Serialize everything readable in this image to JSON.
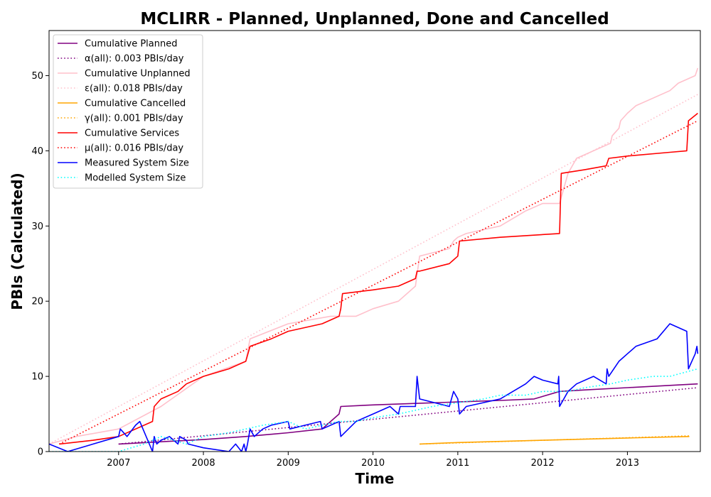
{
  "chart_data": {
    "type": "line",
    "title": "MCLIRR - Planned, Unplanned, Done  and Cancelled",
    "xlabel": "Time",
    "ylabel": "PBIs (Calculated)",
    "xlim": [
      2006.18,
      2013.86
    ],
    "ylim": [
      0,
      56
    ],
    "x_ticks": [
      2007,
      2008,
      2009,
      2010,
      2011,
      2012,
      2013
    ],
    "x_tick_labels": [
      "2007",
      "2008",
      "2009",
      "2010",
      "2011",
      "2012",
      "2013"
    ],
    "y_ticks": [
      0,
      10,
      20,
      30,
      40,
      50
    ],
    "y_tick_labels": [
      "0",
      "10",
      "20",
      "30",
      "40",
      "50"
    ],
    "legend_position": "upper-left",
    "grid": false,
    "series": [
      {
        "name": "Cumulative Planned",
        "color": "#800080",
        "style": "solid",
        "x": [
          2007.0,
          2007.5,
          2008.0,
          2008.5,
          2009.0,
          2009.4,
          2009.6,
          2009.62,
          2010.0,
          2010.5,
          2011.0,
          2011.5,
          2011.9,
          2012.2,
          2012.5,
          2013.0,
          2013.5,
          2013.83
        ],
        "y": [
          1,
          1.3,
          1.6,
          2.0,
          2.5,
          3.0,
          5,
          6,
          6.2,
          6.4,
          6.6,
          6.8,
          7.0,
          8.0,
          8.2,
          8.5,
          8.8,
          9.0
        ]
      },
      {
        "name": "α(all): 0.003 PBIs/day",
        "color": "#800080",
        "style": "dotted",
        "x": [
          2007.0,
          2013.83
        ],
        "y": [
          1.0,
          8.5
        ]
      },
      {
        "name": "Cumulative Unplanned",
        "color": "#ffc0cb",
        "style": "solid",
        "x": [
          2006.18,
          2006.5,
          2007.0,
          2007.5,
          2008.0,
          2008.5,
          2008.55,
          2009.0,
          2009.5,
          2009.8,
          2010.0,
          2010.3,
          2010.5,
          2010.55,
          2010.9,
          2010.95,
          2011.0,
          2011.1,
          2011.5,
          2011.8,
          2012.0,
          2012.2,
          2012.3,
          2012.4,
          2012.6,
          2012.8,
          2012.82,
          2012.9,
          2012.92,
          2013.0,
          2013.1,
          2013.3,
          2013.5,
          2013.6,
          2013.8,
          2013.83
        ],
        "y": [
          1,
          2,
          3,
          6,
          10,
          12,
          15,
          17,
          18,
          18,
          19,
          20,
          22,
          26,
          27,
          28,
          28.5,
          29,
          30,
          32,
          33,
          33,
          37,
          39,
          40,
          41,
          42,
          43,
          44,
          45,
          46,
          47,
          48,
          49,
          50,
          51
        ]
      },
      {
        "name": "ε(all): 0.018 PBIs/day",
        "color": "#ffc0cb",
        "style": "dotted",
        "x": [
          2006.18,
          2013.83
        ],
        "y": [
          1.0,
          47.5
        ]
      },
      {
        "name": "Cumulative Cancelled",
        "color": "#ffa500",
        "style": "solid",
        "x": [
          2010.55,
          2011.0,
          2012.0,
          2013.0,
          2013.73
        ],
        "y": [
          1,
          1.2,
          1.5,
          1.8,
          2
        ]
      },
      {
        "name": "γ(all): 0.001 PBIs/day",
        "color": "#ffa500",
        "style": "dotted",
        "x": [
          2010.55,
          2013.73
        ],
        "y": [
          1.0,
          2.1
        ]
      },
      {
        "name": "Cumulative Services",
        "color": "#ff0000",
        "style": "solid",
        "x": [
          2006.3,
          2006.7,
          2007.0,
          2007.4,
          2007.42,
          2007.5,
          2007.7,
          2007.8,
          2008.0,
          2008.3,
          2008.4,
          2008.5,
          2008.55,
          2008.8,
          2009.0,
          2009.4,
          2009.6,
          2009.62,
          2009.64,
          2010.0,
          2010.3,
          2010.5,
          2010.52,
          2010.55,
          2010.9,
          2011.0,
          2011.02,
          2011.5,
          2012.2,
          2012.22,
          2012.5,
          2012.75,
          2012.78,
          2013.0,
          2013.5,
          2013.7,
          2013.72,
          2013.83
        ],
        "y": [
          1,
          1.5,
          2,
          4,
          6,
          7,
          8,
          9,
          10,
          11,
          11.5,
          12,
          14,
          15,
          16,
          17,
          18,
          19,
          21,
          21.5,
          22,
          23,
          24,
          24,
          25,
          26,
          28,
          28.5,
          29,
          37,
          37.5,
          38,
          39,
          39.3,
          39.8,
          40,
          44,
          45
        ]
      },
      {
        "name": "μ(all): 0.016 PBIs/day",
        "color": "#ff0000",
        "style": "dotted",
        "x": [
          2006.3,
          2013.83
        ],
        "y": [
          1.0,
          44.0
        ]
      },
      {
        "name": "Measured System Size",
        "color": "#0000ff",
        "style": "solid",
        "x": [
          2006.18,
          2006.4,
          2006.7,
          2007.0,
          2007.02,
          2007.1,
          2007.2,
          2007.25,
          2007.4,
          2007.42,
          2007.45,
          2007.5,
          2007.6,
          2007.7,
          2007.72,
          2007.8,
          2007.82,
          2008.0,
          2008.3,
          2008.38,
          2008.45,
          2008.48,
          2008.5,
          2008.52,
          2008.55,
          2008.6,
          2008.7,
          2008.8,
          2009.0,
          2009.02,
          2009.2,
          2009.38,
          2009.4,
          2009.6,
          2009.62,
          2009.8,
          2010.0,
          2010.2,
          2010.3,
          2010.32,
          2010.5,
          2010.52,
          2010.55,
          2010.9,
          2010.95,
          2011.0,
          2011.02,
          2011.1,
          2011.5,
          2011.8,
          2011.9,
          2012.0,
          2012.18,
          2012.19,
          2012.2,
          2012.3,
          2012.4,
          2012.6,
          2012.75,
          2012.76,
          2012.78,
          2012.9,
          2013.0,
          2013.1,
          2013.35,
          2013.5,
          2013.7,
          2013.72,
          2013.8,
          2013.82,
          2013.83
        ],
        "y": [
          1,
          0,
          1,
          2,
          3,
          2,
          3.5,
          4,
          0,
          2,
          1,
          1.5,
          2,
          1,
          2,
          1.5,
          1,
          0.5,
          0,
          1,
          0,
          1,
          0,
          1,
          3,
          2,
          3,
          3.5,
          4,
          3,
          3.5,
          4,
          3,
          4,
          2,
          4,
          5,
          6,
          5,
          6,
          6,
          10,
          7,
          6,
          8,
          7,
          5,
          6,
          7,
          9,
          10,
          9.5,
          9,
          10,
          6,
          8,
          9,
          10,
          9,
          11,
          10,
          12,
          13,
          14,
          15,
          17,
          16,
          11,
          13,
          14,
          13
        ]
      },
      {
        "name": "Modelled System Size",
        "color": "#00ffff",
        "style": "dotted",
        "x": [
          2006.18,
          2007.0,
          2007.3,
          2007.5,
          2007.8,
          2008.0,
          2008.3,
          2008.5,
          2008.7,
          2009.0,
          2009.2,
          2009.4,
          2009.6,
          2009.8,
          2010.0,
          2010.3,
          2010.5,
          2010.7,
          2011.0,
          2011.3,
          2011.5,
          2011.8,
          2012.0,
          2012.3,
          2012.5,
          2012.8,
          2013.0,
          2013.3,
          2013.5,
          2013.83
        ],
        "y": [
          0,
          0,
          1,
          2,
          1,
          2,
          2.5,
          3,
          3.5,
          4,
          3,
          3.5,
          4,
          4,
          4.5,
          5,
          5.5,
          6,
          6.5,
          7,
          7.5,
          7.5,
          8,
          8,
          8.5,
          9,
          9.5,
          10,
          10,
          11
        ]
      }
    ]
  }
}
